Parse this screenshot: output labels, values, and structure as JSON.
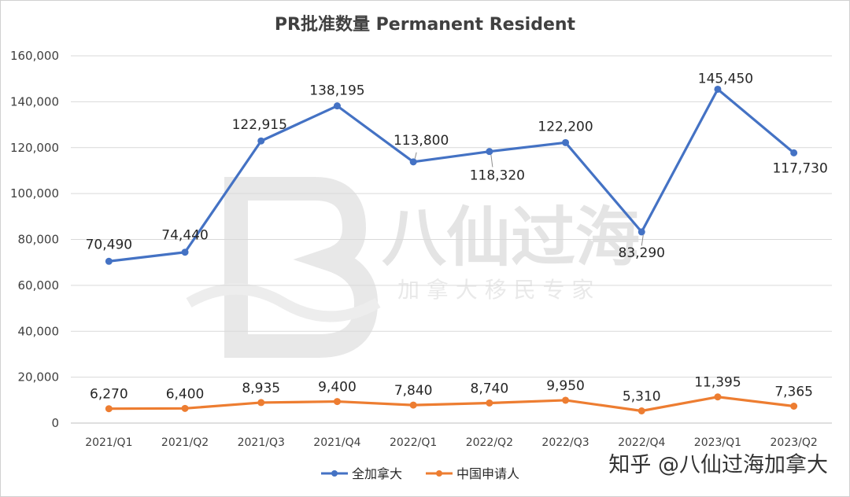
{
  "chart_data": {
    "type": "line",
    "title": "PR批准数量 Permanent Resident",
    "categories": [
      "2021/Q1",
      "2021/Q2",
      "2021/Q3",
      "2021/Q4",
      "2022/Q1",
      "2022/Q2",
      "2022/Q3",
      "2022/Q4",
      "2023/Q1",
      "2023/Q2"
    ],
    "series": [
      {
        "name": "全加拿大",
        "color": "#4472c4",
        "values": [
          70490,
          74440,
          122915,
          138195,
          113800,
          118320,
          122200,
          83290,
          145450,
          117730
        ],
        "labels": [
          "70,490",
          "74,440",
          "122,915",
          "138,195",
          "113,800",
          "118,320",
          "122,200",
          "83,290",
          "145,450",
          "117,730"
        ]
      },
      {
        "name": "中国申请人",
        "color": "#ed7d31",
        "values": [
          6270,
          6400,
          8935,
          9400,
          7840,
          8740,
          9950,
          5310,
          11395,
          7365
        ],
        "labels": [
          "6,270",
          "6,400",
          "8,935",
          "9,400",
          "7,840",
          "8,740",
          "9,950",
          "5,310",
          "11,395",
          "7,365"
        ]
      }
    ],
    "ylim": [
      0,
      160000
    ],
    "yticks": [
      "0",
      "20,000",
      "40,000",
      "60,000",
      "80,000",
      "100,000",
      "120,000",
      "140,000",
      "160,000"
    ],
    "grid": true,
    "legend_position": "bottom"
  },
  "watermark": {
    "logo_icon": "b-logo-icon",
    "main_text": "八仙过海",
    "sub_text": "加 拿 大 移 民 专 家"
  },
  "credit": "知乎 @八仙过海加拿大"
}
